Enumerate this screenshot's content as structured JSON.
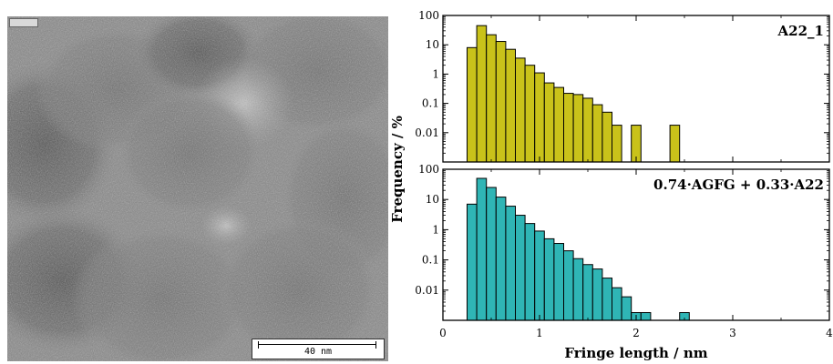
{
  "micrograph": {
    "scale_bar_label": "40 nm"
  },
  "chart_data": [
    {
      "type": "bar",
      "title": "A22_1",
      "color": "#c9c21a",
      "y_scale": "log",
      "ylim": [
        0.001,
        100
      ],
      "yticks": [
        100,
        10,
        1,
        0.1,
        0.01
      ],
      "ytick_labels": [
        "100",
        "10",
        "1",
        "0.1",
        "0.01"
      ],
      "xlim": [
        0,
        4
      ],
      "bin_width": 0.1,
      "x": [
        0.3,
        0.4,
        0.5,
        0.6,
        0.7,
        0.8,
        0.9,
        1.0,
        1.1,
        1.2,
        1.3,
        1.4,
        1.5,
        1.6,
        1.7,
        1.8,
        2.0,
        2.4
      ],
      "values": [
        8,
        45,
        22,
        13,
        7,
        3.5,
        2,
        1.1,
        0.5,
        0.35,
        0.22,
        0.2,
        0.15,
        0.09,
        0.05,
        0.018,
        0.018,
        0.018
      ]
    },
    {
      "type": "bar",
      "title": "0.74·AGFG + 0.33·A22",
      "color": "#2fb5b5",
      "y_scale": "log",
      "ylim": [
        0.001,
        100
      ],
      "yticks": [
        100,
        10,
        1,
        0.1,
        0.01
      ],
      "ytick_labels": [
        "100",
        "10",
        "1",
        "0.1",
        "0.01"
      ],
      "xlim": [
        0,
        4
      ],
      "xticks": [
        0,
        1,
        2,
        3,
        4
      ],
      "xtick_labels": [
        "0",
        "1",
        "2",
        "3",
        "4"
      ],
      "xlabel": "Fringe length / nm",
      "bin_width": 0.1,
      "x": [
        0.3,
        0.4,
        0.5,
        0.6,
        0.7,
        0.8,
        0.9,
        1.0,
        1.1,
        1.2,
        1.3,
        1.4,
        1.5,
        1.6,
        1.7,
        1.8,
        1.9,
        2.0,
        2.1,
        2.5
      ],
      "values": [
        7,
        50,
        25,
        12,
        6,
        3,
        1.6,
        0.9,
        0.5,
        0.35,
        0.2,
        0.11,
        0.07,
        0.05,
        0.025,
        0.012,
        0.006,
        0.0018,
        0.0018,
        0.0018
      ]
    }
  ],
  "ylabel": "Frequency / %"
}
